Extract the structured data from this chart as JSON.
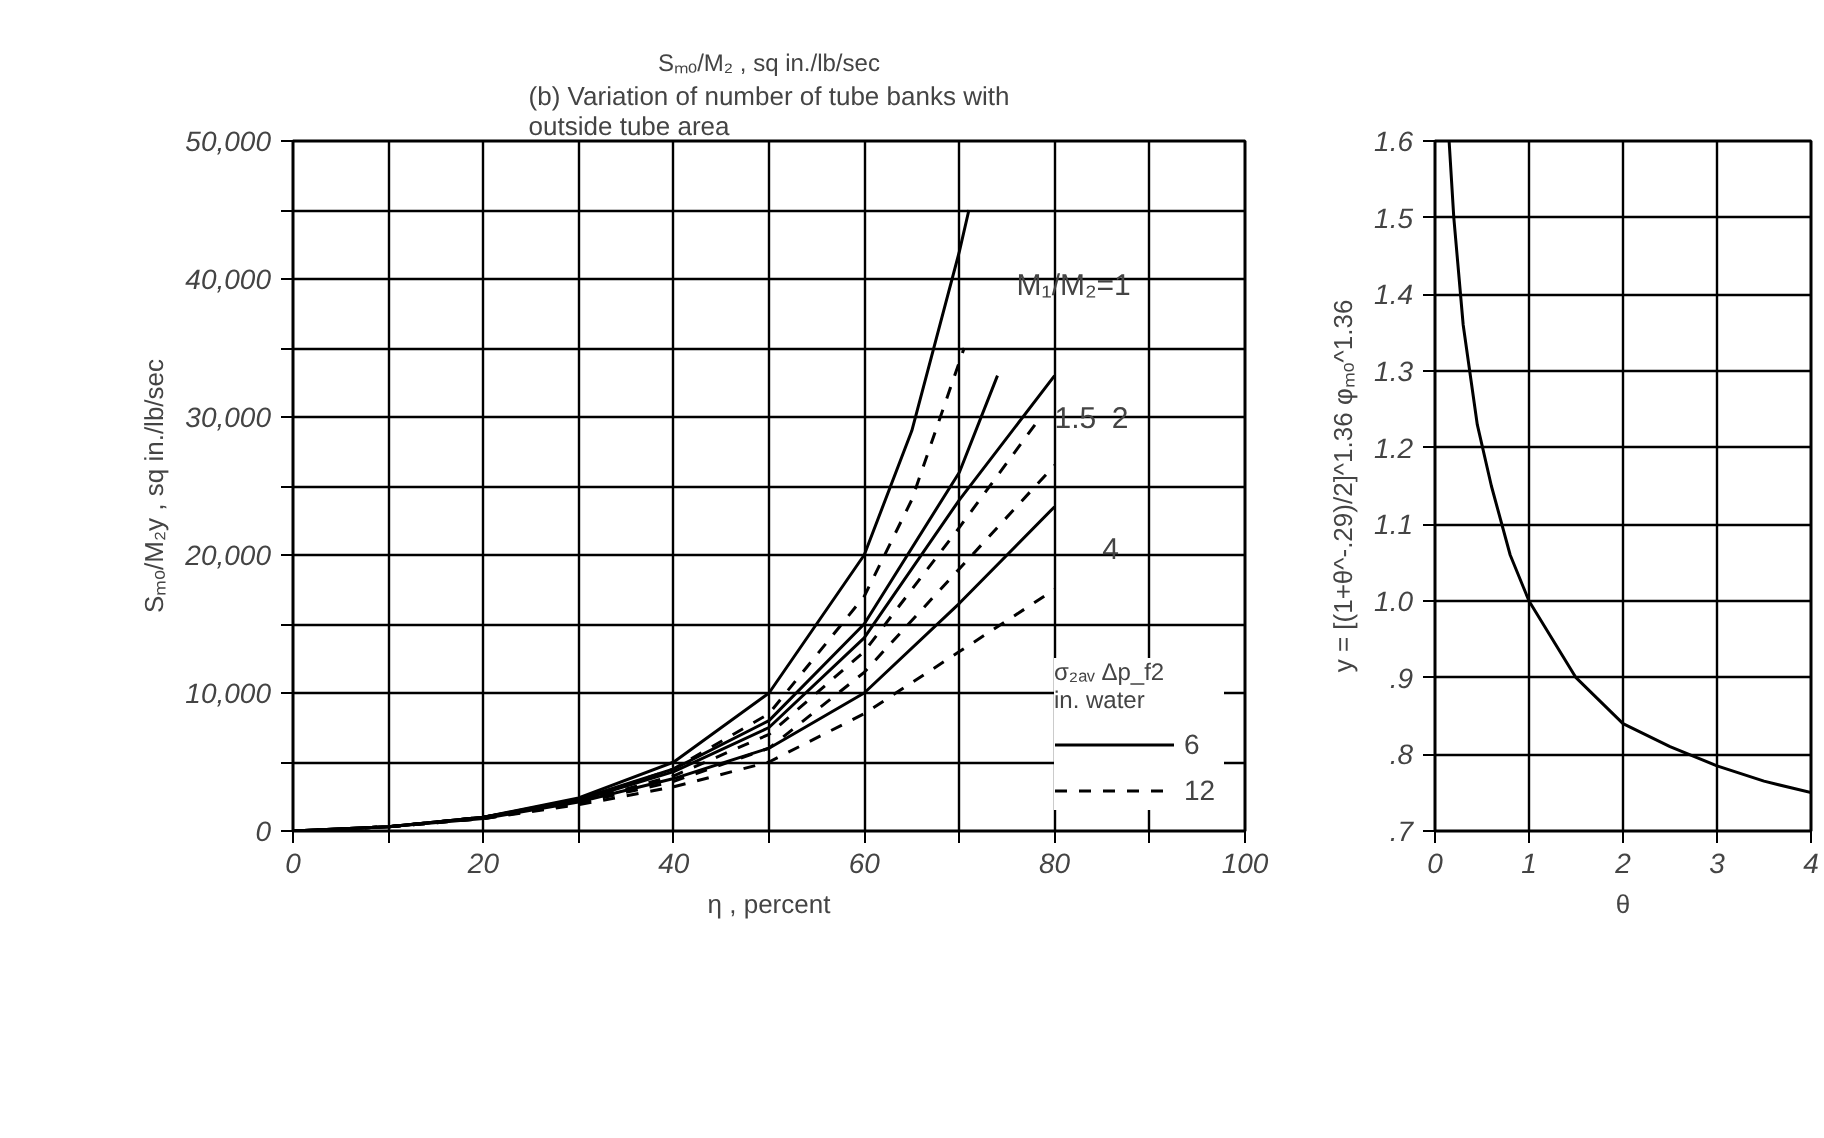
{
  "chart_data": [
    {
      "type": "line",
      "title": "(b) Variation of number of tube banks with\noutside tube area",
      "xlabel": "η , percent",
      "ylabel": "Sₘₒ/M₂y , sq in./lb/sec",
      "legend_title": "σ₂ₐᵥ Δp_f2\nin. water",
      "legend": "bottom right",
      "grid": true,
      "xlim": [
        0,
        100
      ],
      "ylim": [
        0,
        50000
      ],
      "xticks": [
        0,
        {
          "value": 10,
          "label": null
        },
        20,
        {
          "value": 30,
          "label": null
        },
        40,
        {
          "value": 50,
          "label": null
        },
        60,
        {
          "value": 70,
          "label": null
        },
        80,
        {
          "value": 90,
          "label": null
        },
        100
      ],
      "yticks": [
        0,
        {
          "value": 5000,
          "label": null
        },
        {
          "value": 10000,
          "label": "10,000"
        },
        {
          "value": 15000,
          "label": null
        },
        {
          "value": 20000,
          "label": "20,000"
        },
        {
          "value": 25000,
          "label": null
        },
        {
          "value": 30000,
          "label": "30,000"
        },
        {
          "value": 35000,
          "label": null
        },
        {
          "value": 40000,
          "label": "40,000"
        },
        {
          "value": 45000,
          "label": null
        },
        {
          "value": 50000,
          "label": "50,000"
        }
      ],
      "annotations": [
        "Sₘₒ/M₂ , sq in./lb/sec",
        "M₁/M₂=1",
        "1.5",
        "2",
        "4"
      ],
      "series": [
        {
          "name": "6",
          "color": "#000000",
          "line_style": "solid",
          "x": [
            0,
            10,
            20,
            30,
            40,
            50,
            60,
            65,
            70,
            71
          ],
          "values": [
            0,
            300,
            1000,
            2400,
            5000,
            10000,
            20000,
            29000,
            42000,
            45000
          ]
        },
        {
          "name": "12",
          "color": "#000000",
          "line_style": "dashed",
          "x": [
            0,
            10,
            20,
            30,
            40,
            50,
            60,
            65,
            70.5
          ],
          "values": [
            0,
            300,
            1000,
            2200,
            4500,
            8500,
            17000,
            24000,
            35000
          ]
        },
        {
          "color": "#000000",
          "line_style": "solid",
          "x": [
            0,
            10,
            20,
            30,
            40,
            50,
            60,
            70,
            74
          ],
          "values": [
            0,
            300,
            1000,
            2300,
            4500,
            8000,
            15000,
            26000,
            33000
          ]
        },
        {
          "color": "#000000",
          "line_style": "dashed",
          "x": [
            0,
            10,
            20,
            30,
            40,
            50,
            60,
            70,
            78
          ],
          "values": [
            0,
            300,
            1000,
            2100,
            4000,
            7000,
            13000,
            22000,
            29500
          ]
        },
        {
          "color": "#000000",
          "line_style": "solid",
          "x": [
            0,
            10,
            20,
            30,
            40,
            50,
            60,
            70,
            80
          ],
          "values": [
            0,
            300,
            1000,
            2200,
            4300,
            7500,
            14000,
            24000,
            33000
          ]
        },
        {
          "color": "#000000",
          "line_style": "dashed",
          "x": [
            0,
            10,
            20,
            30,
            40,
            50,
            60,
            70,
            80
          ],
          "values": [
            0,
            300,
            900,
            2000,
            3600,
            6000,
            11500,
            19000,
            26500
          ]
        },
        {
          "color": "#000000",
          "line_style": "solid",
          "x": [
            0,
            10,
            20,
            30,
            40,
            50,
            60,
            70,
            80
          ],
          "values": [
            0,
            300,
            900,
            2100,
            3800,
            6000,
            10000,
            16500,
            23500
          ]
        },
        {
          "color": "#000000",
          "line_style": "dashed",
          "x": [
            0,
            10,
            20,
            30,
            40,
            50,
            60,
            70,
            80
          ],
          "values": [
            0,
            300,
            900,
            1900,
            3200,
            5000,
            8500,
            13000,
            17500
          ]
        }
      ]
    },
    {
      "type": "line",
      "xlabel": "θ",
      "ylabel": "y = [(1+θ^-.29)/2]^1.36 φₘₒ^1.36",
      "grid": true,
      "xlim": [
        0,
        4
      ],
      "ylim": [
        0.7,
        1.6
      ],
      "xticks": [
        0,
        1,
        2,
        3,
        4
      ],
      "yticks": [
        {
          "value": 0.7,
          "label": ".7"
        },
        {
          "value": 0.8,
          "label": ".8"
        },
        {
          "value": 0.9,
          "label": ".9"
        },
        {
          "value": 1.0,
          "label": "1.0"
        },
        1.1,
        1.2,
        1.3,
        1.4,
        1.5,
        1.6
      ],
      "series": [
        {
          "color": "#000000",
          "line_style": "solid",
          "x": [
            0.15,
            0.2,
            0.3,
            0.45,
            0.6,
            0.8,
            1,
            1.5,
            2,
            2.5,
            3,
            3.5,
            4
          ],
          "values": [
            1.6,
            1.5,
            1.36,
            1.23,
            1.15,
            1.06,
            1.0,
            0.9,
            0.84,
            0.81,
            0.785,
            0.765,
            0.75
          ]
        }
      ]
    }
  ]
}
